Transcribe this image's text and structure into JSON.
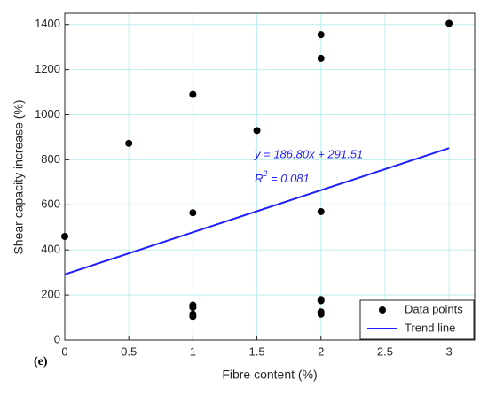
{
  "chart_data": {
    "type": "scatter",
    "xlabel": "Fibre content (%)",
    "ylabel": "Shear capacity increase (%)",
    "panel_label": "(e)",
    "equation": "y = 186.80x + 291.51",
    "r2_label": {
      "base": "R",
      "sup": "2",
      "rest": " = 0.081"
    },
    "xlim": [
      0,
      3.2
    ],
    "ylim": [
      0,
      1450
    ],
    "xticks": [
      0,
      0.5,
      1,
      1.5,
      2,
      2.5,
      3
    ],
    "yticks": [
      0,
      200,
      400,
      600,
      800,
      1000,
      1200,
      1400
    ],
    "grid": true,
    "grid_color": "#bdeeee",
    "legend": "lower right",
    "series": [
      {
        "name": "Data points",
        "type": "scatter",
        "color": "#000000",
        "x": [
          0,
          0.5,
          1,
          1,
          1,
          1,
          1,
          1,
          1.5,
          2,
          2,
          2,
          2,
          2,
          2,
          2,
          3
        ],
        "values": [
          460,
          873,
          1090,
          565,
          155,
          145,
          115,
          105,
          930,
          1355,
          1250,
          570,
          180,
          175,
          125,
          115,
          1405
        ]
      },
      {
        "name": "Trend line",
        "type": "line",
        "color": "#1f1fff",
        "x": [
          0,
          3
        ],
        "values": [
          291.51,
          851.91
        ]
      }
    ]
  }
}
